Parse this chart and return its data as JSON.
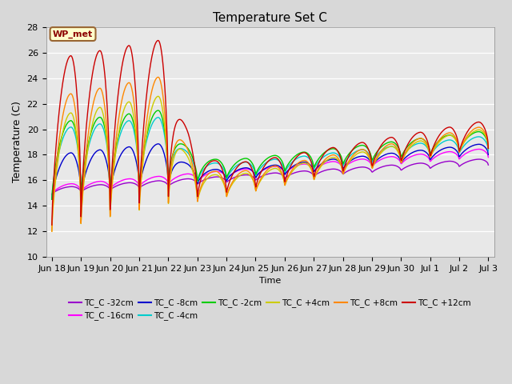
{
  "title": "Temperature Set C",
  "xlabel": "Time",
  "ylabel": "Temperature (C)",
  "ylim": [
    10,
    28
  ],
  "annotation_text": "WP_met",
  "annotation_color": "#8B0000",
  "annotation_bg": "#FFFFCC",
  "annotation_border": "#996633",
  "bg_color": "#D8D8D8",
  "plot_bg": "#E8E8E8",
  "series": [
    {
      "label": "TC_C -32cm",
      "color": "#9900CC"
    },
    {
      "label": "TC_C -16cm",
      "color": "#FF00FF"
    },
    {
      "label": "TC_C -8cm",
      "color": "#0000CC"
    },
    {
      "label": "TC_C -4cm",
      "color": "#00CCCC"
    },
    {
      "label": "TC_C -2cm",
      "color": "#00CC00"
    },
    {
      "label": "TC_C +4cm",
      "color": "#CCCC00"
    },
    {
      "label": "TC_C +8cm",
      "color": "#FF8800"
    },
    {
      "label": "TC_C +12cm",
      "color": "#CC0000"
    }
  ],
  "x_tick_labels": [
    "Jun 18",
    "Jun 19",
    "Jun 20",
    "Jun 21",
    "Jun 22",
    "Jun 23",
    "Jun 24",
    "Jun 25",
    "Jun 26",
    "Jun 27",
    "Jun 28",
    "Jun 29",
    "Jun 30",
    "Jul 1",
    "Jul 2",
    "Jul 3"
  ],
  "figsize": [
    6.4,
    4.8
  ],
  "dpi": 100
}
